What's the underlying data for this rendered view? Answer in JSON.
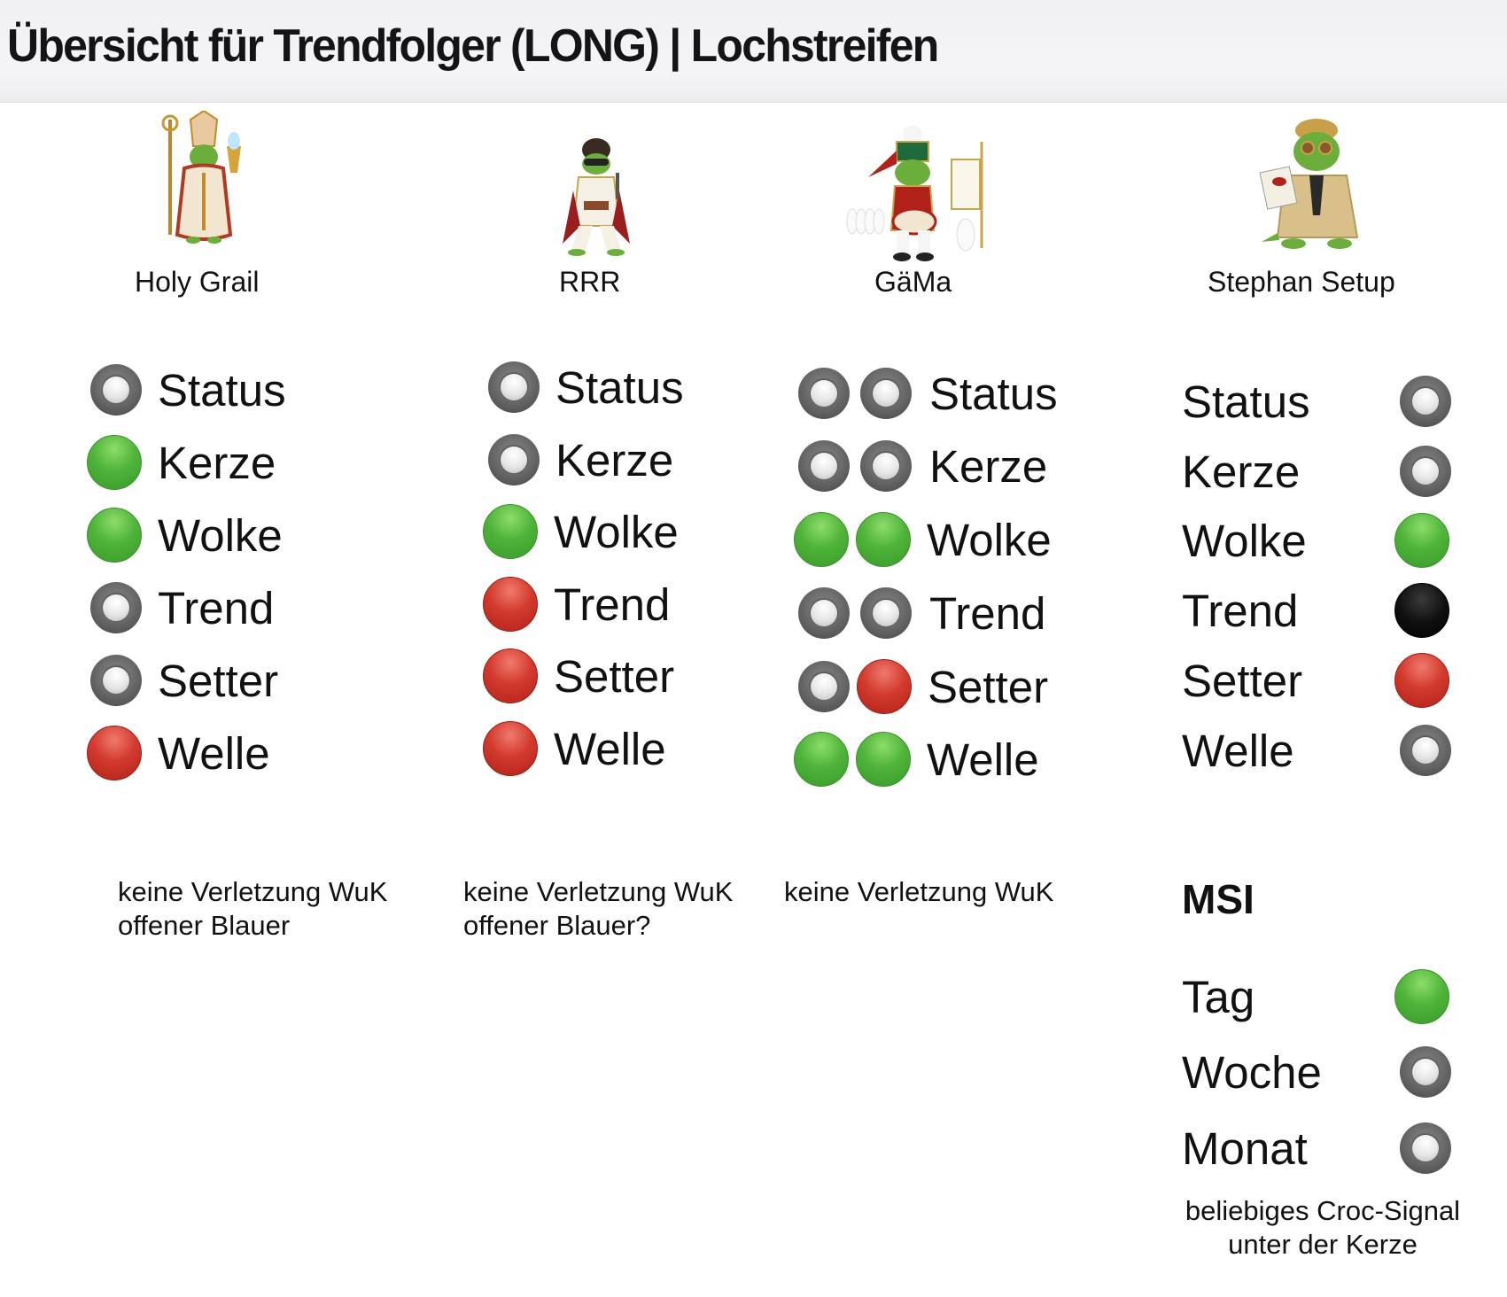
{
  "header": {
    "title": "Übersicht für Trendfolger (LONG) | Lochstreifen"
  },
  "colors": {
    "green": "#4fb43a",
    "red": "#d33a2e",
    "gray": "#6a6a6a",
    "black": "#000000"
  },
  "columns": [
    {
      "name": "Holy Grail",
      "mascot_icon": "pope-croc-icon",
      "rows": [
        {
          "label": "Status",
          "lights": [
            "gray"
          ]
        },
        {
          "label": "Kerze",
          "lights": [
            "green"
          ]
        },
        {
          "label": "Wolke",
          "lights": [
            "green"
          ]
        },
        {
          "label": "Trend",
          "lights": [
            "gray"
          ]
        },
        {
          "label": "Setter",
          "lights": [
            "gray"
          ]
        },
        {
          "label": "Welle",
          "lights": [
            "red"
          ]
        }
      ],
      "note": [
        "keine Verletzung WuK",
        "offener Blauer"
      ]
    },
    {
      "name": "RRR",
      "mascot_icon": "elvis-croc-icon",
      "rows": [
        {
          "label": "Status",
          "lights": [
            "gray"
          ]
        },
        {
          "label": "Kerze",
          "lights": [
            "gray"
          ]
        },
        {
          "label": "Wolke",
          "lights": [
            "green"
          ]
        },
        {
          "label": "Trend",
          "lights": [
            "red"
          ]
        },
        {
          "label": "Setter",
          "lights": [
            "red"
          ]
        },
        {
          "label": "Welle",
          "lights": [
            "red"
          ]
        }
      ],
      "note": [
        "keine Verletzung WuK",
        "offener Blauer?"
      ]
    },
    {
      "name": "GäMa",
      "mascot_icon": "drummer-croc-icon",
      "rows": [
        {
          "label": "Status",
          "lights": [
            "gray",
            "gray"
          ]
        },
        {
          "label": "Kerze",
          "lights": [
            "gray",
            "gray"
          ]
        },
        {
          "label": "Wolke",
          "lights": [
            "green",
            "green"
          ]
        },
        {
          "label": "Trend",
          "lights": [
            "gray",
            "gray"
          ]
        },
        {
          "label": "Setter",
          "lights": [
            "gray",
            "red"
          ]
        },
        {
          "label": "Welle",
          "lights": [
            "green",
            "green"
          ]
        }
      ],
      "note": [
        "keine Verletzung WuK"
      ]
    },
    {
      "name": "Stephan Setup",
      "mascot_icon": "detective-croc-icon",
      "rows": [
        {
          "label": "Status",
          "lights": [
            "gray"
          ]
        },
        {
          "label": "Kerze",
          "lights": [
            "gray"
          ]
        },
        {
          "label": "Wolke",
          "lights": [
            "green"
          ]
        },
        {
          "label": "Trend",
          "lights": [
            "black"
          ]
        },
        {
          "label": "Setter",
          "lights": [
            "red"
          ]
        },
        {
          "label": "Welle",
          "lights": [
            "gray"
          ]
        }
      ],
      "msi": {
        "title": "MSI",
        "rows": [
          {
            "label": "Tag",
            "lights": [
              "green"
            ]
          },
          {
            "label": "Woche",
            "lights": [
              "gray"
            ]
          },
          {
            "label": "Monat",
            "lights": [
              "gray"
            ]
          }
        ]
      },
      "note": [
        "beliebiges Croc-Signal",
        "unter der Kerze"
      ]
    }
  ]
}
